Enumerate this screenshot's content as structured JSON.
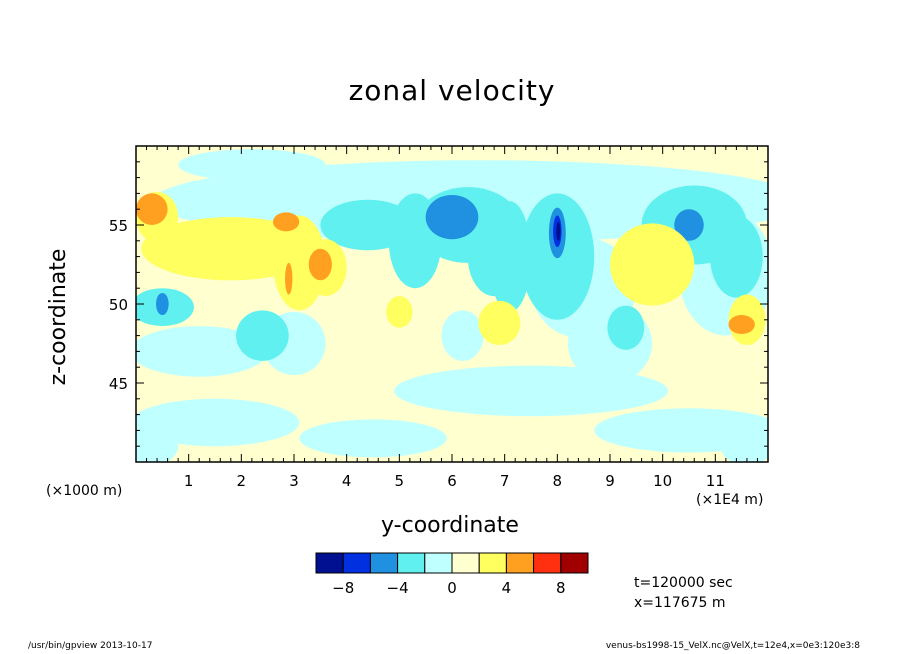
{
  "colors": {
    "levels": [
      "#001090",
      "#0030e0",
      "#2090e0",
      "#60f0f0",
      "#c0ffff",
      "#ffffd0",
      "#ffff60",
      "#ffa020",
      "#ff3010",
      "#a00000"
    ]
  },
  "chart_data": {
    "type": "heatmap",
    "title": "zonal velocity",
    "xlabel": "y-coordinate",
    "ylabel": "z-coordinate",
    "x_multiplier": "(×1E4 m)",
    "y_multiplier": "(×1000 m)",
    "xlim": [
      0,
      12
    ],
    "ylim": [
      40,
      60
    ],
    "xticks": [
      1,
      2,
      3,
      4,
      5,
      6,
      7,
      8,
      9,
      10,
      11
    ],
    "yticks": [
      45,
      50,
      55
    ],
    "colorbar": {
      "levels": [
        -10,
        -8,
        -6,
        -4,
        -2,
        0,
        2,
        4,
        6,
        8,
        10
      ],
      "tick_labels": [
        "-8",
        "-4",
        "0",
        "4",
        "8"
      ]
    },
    "features": [
      {
        "y": 0.3,
        "z": 56.0,
        "value": 6
      },
      {
        "y": 2.8,
        "z": 55.2,
        "value": 5
      },
      {
        "y": 3.5,
        "z": 52.5,
        "value": 6
      },
      {
        "y": 2.9,
        "z": 52.0,
        "value": 5
      },
      {
        "y": 0.5,
        "z": 50.0,
        "value": -6
      },
      {
        "y": 6.0,
        "z": 55.5,
        "value": -6
      },
      {
        "y": 8.0,
        "z": 54.5,
        "value": -10
      },
      {
        "y": 10.5,
        "z": 55.0,
        "value": -6
      },
      {
        "y": 11.6,
        "z": 48.7,
        "value": 6
      }
    ]
  },
  "annotations": {
    "time": "t=120000 sec",
    "position": "x=117675 m",
    "footer_left": "/usr/bin/gpview   2013-10-17",
    "footer_right": "venus-bs1998-15_VelX.nc@VelX,t=12e4,x=0e3:120e3:8"
  }
}
